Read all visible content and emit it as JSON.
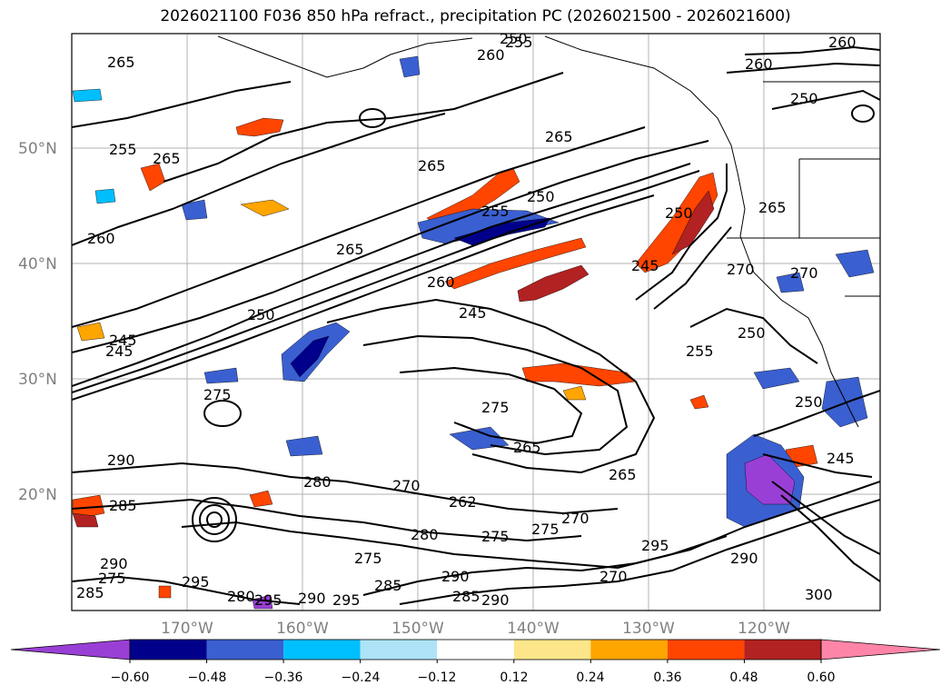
{
  "title": "2026021100 F036 850 hPa refract., precipitation PC (2026021500 - 2026021600)",
  "lat_labels": [
    "50°N",
    "40°N",
    "30°N",
    "20°N"
  ],
  "lon_labels": [
    "170°W",
    "160°W",
    "150°W",
    "140°W",
    "130°W",
    "120°W"
  ],
  "contour_labels": [
    "265",
    "260",
    "255",
    "250",
    "265",
    "265",
    "255",
    "260",
    "265",
    "255",
    "250",
    "265",
    "260",
    "265",
    "250",
    "260",
    "245",
    "245",
    "250",
    "245",
    "255",
    "250",
    "270",
    "265",
    "250",
    "275",
    "290",
    "280",
    "270",
    "262",
    "265",
    "275",
    "270",
    "275",
    "280",
    "275",
    "275",
    "285",
    "290",
    "295",
    "290",
    "290",
    "285",
    "275",
    "280",
    "290",
    "295",
    "285",
    "295",
    "285",
    "270",
    "290",
    "245",
    "295",
    "300",
    "270",
    "260",
    "250",
    "245"
  ],
  "colorbar": {
    "tick_labels": [
      "−0.60",
      "−0.48",
      "−0.36",
      "−0.24",
      "−0.12",
      "0.12",
      "0.24",
      "0.36",
      "0.48",
      "0.60"
    ],
    "colors": [
      "#9a3fd6",
      "#00008b",
      "#3a5fd0",
      "#00bfff",
      "#aee3f7",
      "#ffffff",
      "#fde68a",
      "#ffa500",
      "#ff4500",
      "#b22222",
      "#ff85a8"
    ]
  },
  "legend_colors": {
    "negative_strong": "#00008b",
    "negative_mid": "#3a5fd0",
    "negative_light": "#00bfff",
    "positive_light": "#ffa500",
    "positive_mid": "#ff4500",
    "positive_strong": "#b22222",
    "extreme_negative": "#9a3fd6",
    "extreme_positive": "#ff85a8",
    "gridline": "#a0a0a0",
    "contour": "#000000"
  }
}
